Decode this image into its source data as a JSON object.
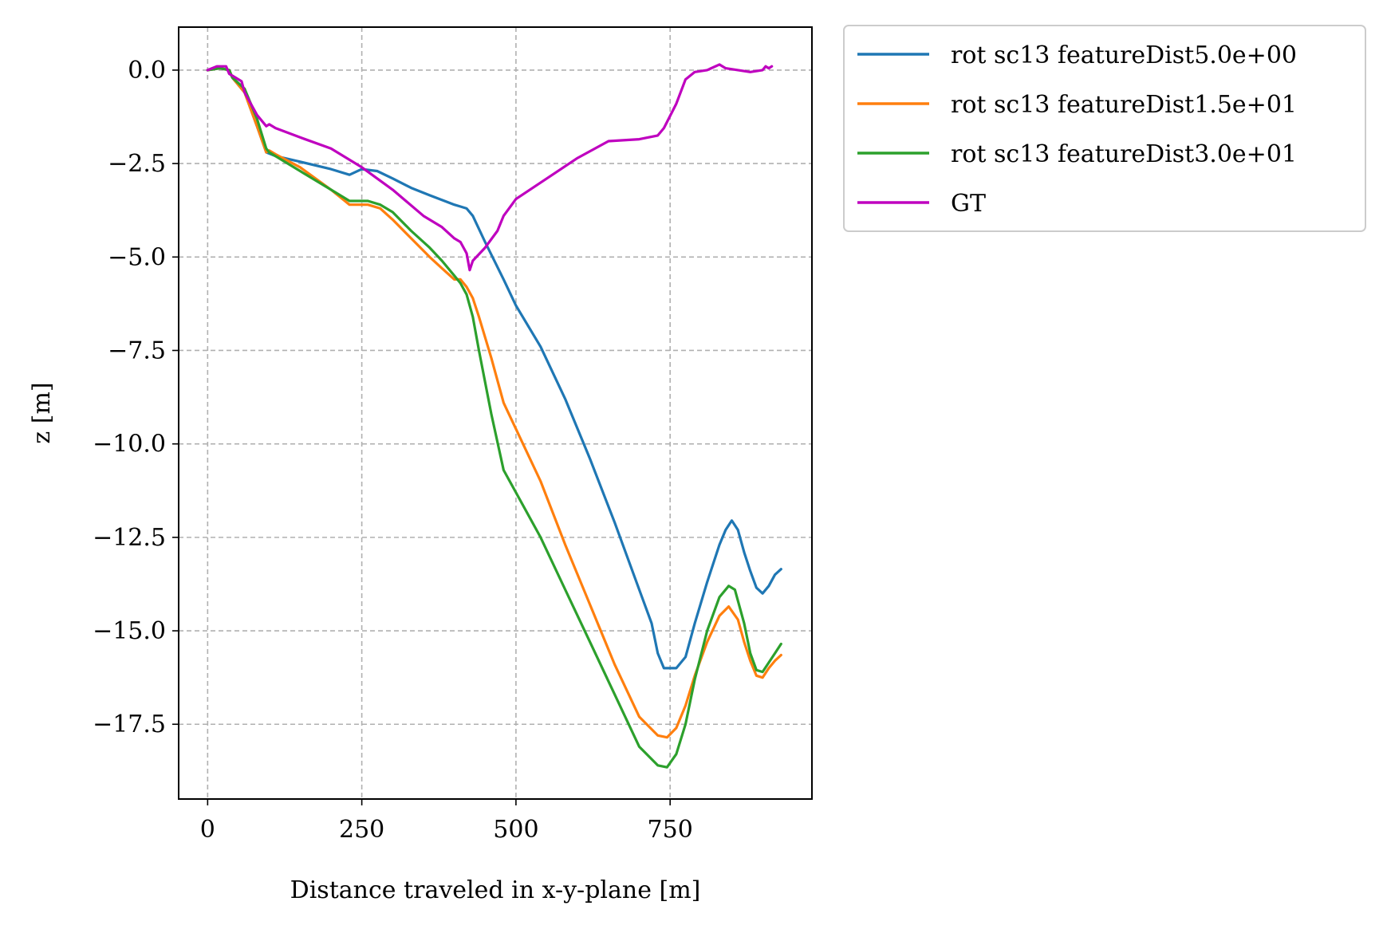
{
  "chart_data": {
    "type": "line",
    "title": "",
    "xlabel": "Distance traveled in x-y-plane [m]",
    "ylabel": "z [m]",
    "xlim": [
      -47,
      980
    ],
    "ylim": [
      -19.5,
      1.15
    ],
    "x_ticks": [
      0,
      250,
      500,
      750
    ],
    "x_tick_labels": [
      "0",
      "250",
      "500",
      "750"
    ],
    "y_ticks": [
      0,
      -2.5,
      -5,
      -7.5,
      -10,
      -12.5,
      -15,
      -17.5
    ],
    "y_tick_labels": [
      "0.0",
      "−2.5",
      "−5.0",
      "−7.5",
      "−10.0",
      "−12.5",
      "−15.0",
      "−17.5"
    ],
    "grid": true,
    "legend_position": "outside-upper-right",
    "series": [
      {
        "name": "rot sc13 featureDist5.0e+00",
        "color": "#1f77b4",
        "x": [
          0,
          20,
          35,
          40,
          60,
          80,
          95,
          110,
          150,
          200,
          230,
          250,
          275,
          300,
          330,
          360,
          400,
          410,
          420,
          430,
          450,
          480,
          500,
          540,
          580,
          620,
          660,
          700,
          720,
          730,
          740,
          760,
          775,
          790,
          810,
          830,
          840,
          850,
          860,
          870,
          880,
          890,
          900,
          910,
          920,
          930
        ],
        "y": [
          0.0,
          0.05,
          0.0,
          -0.2,
          -0.6,
          -1.5,
          -2.2,
          -2.3,
          -2.45,
          -2.65,
          -2.8,
          -2.65,
          -2.7,
          -2.9,
          -3.15,
          -3.35,
          -3.6,
          -3.65,
          -3.7,
          -3.9,
          -4.6,
          -5.6,
          -6.3,
          -7.4,
          -8.8,
          -10.4,
          -12.1,
          -13.9,
          -14.8,
          -15.6,
          -16.0,
          -16.0,
          -15.7,
          -14.8,
          -13.7,
          -12.7,
          -12.3,
          -12.05,
          -12.3,
          -12.9,
          -13.4,
          -13.85,
          -14.0,
          -13.8,
          -13.5,
          -13.35
        ]
      },
      {
        "name": "rot sc13 featureDist1.5e+01",
        "color": "#ff7f0e",
        "x": [
          0,
          20,
          35,
          40,
          60,
          80,
          95,
          100,
          110,
          150,
          200,
          230,
          260,
          280,
          300,
          330,
          360,
          380,
          400,
          410,
          420,
          430,
          440,
          460,
          480,
          500,
          540,
          580,
          620,
          660,
          700,
          730,
          745,
          760,
          775,
          790,
          810,
          830,
          845,
          860,
          870,
          880,
          890,
          900,
          910,
          920,
          930
        ],
        "y": [
          0.0,
          0.05,
          0.0,
          -0.2,
          -0.6,
          -1.5,
          -2.2,
          -2.15,
          -2.25,
          -2.6,
          -3.2,
          -3.6,
          -3.6,
          -3.7,
          -4.0,
          -4.5,
          -5.0,
          -5.3,
          -5.6,
          -5.6,
          -5.8,
          -6.1,
          -6.6,
          -7.7,
          -8.9,
          -9.6,
          -11.0,
          -12.7,
          -14.3,
          -15.9,
          -17.3,
          -17.8,
          -17.85,
          -17.6,
          -17.0,
          -16.2,
          -15.3,
          -14.6,
          -14.35,
          -14.7,
          -15.3,
          -15.8,
          -16.2,
          -16.25,
          -16.0,
          -15.8,
          -15.65
        ]
      },
      {
        "name": "rot sc13 featureDist3.0e+01",
        "color": "#2ca02c",
        "x": [
          0,
          20,
          35,
          40,
          60,
          80,
          95,
          100,
          110,
          150,
          200,
          230,
          260,
          280,
          300,
          330,
          360,
          380,
          400,
          410,
          420,
          430,
          440,
          460,
          480,
          500,
          540,
          580,
          620,
          660,
          700,
          730,
          745,
          760,
          775,
          790,
          810,
          830,
          845,
          855,
          870,
          880,
          890,
          900,
          910,
          920,
          930
        ],
        "y": [
          0.0,
          0.05,
          0.0,
          -0.2,
          -0.5,
          -1.3,
          -2.1,
          -2.2,
          -2.3,
          -2.7,
          -3.2,
          -3.5,
          -3.5,
          -3.6,
          -3.8,
          -4.3,
          -4.75,
          -5.1,
          -5.5,
          -5.7,
          -6.0,
          -6.6,
          -7.5,
          -9.2,
          -10.7,
          -11.3,
          -12.5,
          -13.9,
          -15.3,
          -16.7,
          -18.1,
          -18.6,
          -18.65,
          -18.3,
          -17.5,
          -16.3,
          -15.0,
          -14.1,
          -13.8,
          -13.9,
          -14.8,
          -15.6,
          -16.05,
          -16.1,
          -15.85,
          -15.6,
          -15.35
        ]
      },
      {
        "name": "GT",
        "color": "#bf00bf",
        "x": [
          0,
          15,
          30,
          35,
          40,
          55,
          60,
          80,
          95,
          100,
          110,
          150,
          200,
          250,
          300,
          350,
          380,
          400,
          410,
          420,
          425,
          430,
          450,
          470,
          480,
          500,
          550,
          600,
          650,
          700,
          730,
          740,
          760,
          775,
          790,
          810,
          830,
          835,
          840,
          860,
          880,
          900,
          905,
          910,
          915
        ],
        "y": [
          0.0,
          0.1,
          0.1,
          -0.1,
          -0.15,
          -0.3,
          -0.6,
          -1.2,
          -1.5,
          -1.45,
          -1.55,
          -1.8,
          -2.1,
          -2.6,
          -3.2,
          -3.9,
          -4.2,
          -4.5,
          -4.6,
          -4.9,
          -5.35,
          -5.1,
          -4.75,
          -4.3,
          -3.9,
          -3.45,
          -2.9,
          -2.35,
          -1.9,
          -1.85,
          -1.75,
          -1.55,
          -0.9,
          -0.25,
          -0.05,
          0.0,
          0.15,
          0.1,
          0.05,
          0.0,
          -0.05,
          0.0,
          0.1,
          0.05,
          0.1
        ]
      }
    ]
  }
}
